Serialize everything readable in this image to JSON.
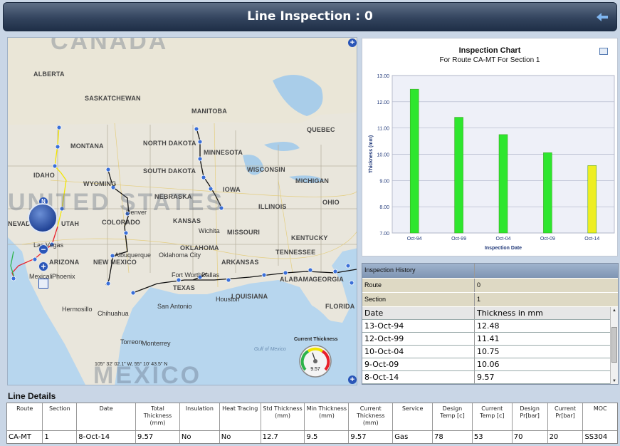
{
  "header": {
    "title": "Line Inspection : 0",
    "back_icon": "back-arrow-icon"
  },
  "map": {
    "country_labels": [
      "CANADA",
      "UNITED STATES",
      "MEXICO"
    ],
    "state_labels": [
      {
        "name": "ALBERTA"
      },
      {
        "name": "SASKATCHEWAN"
      },
      {
        "name": "MANITOBA"
      },
      {
        "name": "QUEBEC"
      },
      {
        "name": "MONTANA"
      },
      {
        "name": "NORTH DAKOTA"
      },
      {
        "name": "MINNESOTA"
      },
      {
        "name": "SOUTH DAKOTA"
      },
      {
        "name": "WISCONSIN"
      },
      {
        "name": "MICHIGAN"
      },
      {
        "name": "IDAHO"
      },
      {
        "name": "WYOMING"
      },
      {
        "name": "NEBRASKA"
      },
      {
        "name": "IOWA"
      },
      {
        "name": "ILLINOIS"
      },
      {
        "name": "OHIO"
      },
      {
        "name": "NEVADA"
      },
      {
        "name": "UTAH"
      },
      {
        "name": "COLORADO"
      },
      {
        "name": "KANSAS"
      },
      {
        "name": "MISSOURI"
      },
      {
        "name": "KENTUCKY"
      },
      {
        "name": "OKLAHOMA"
      },
      {
        "name": "TENNESSEE"
      },
      {
        "name": "ARIZONA"
      },
      {
        "name": "NEW MEXICO"
      },
      {
        "name": "ARKANSAS"
      },
      {
        "name": "TEXAS"
      },
      {
        "name": "LOUISIANA"
      },
      {
        "name": "ALABAMA"
      },
      {
        "name": "GEORGIA"
      },
      {
        "name": "FLORIDA"
      }
    ],
    "city_labels": [
      "Las Vegas",
      "Phoenix",
      "Denver",
      "Albuquerque",
      "Oklahoma City",
      "Dallas",
      "Fort Worth",
      "Houston",
      "San Antonio",
      "Chihuahua",
      "Monterrey",
      "Hermosillo",
      "Torreon",
      "Wichita",
      "Mexicali"
    ],
    "water_labels": [
      "Gulf of Mexico"
    ],
    "coordinates": "105° 32' 02.1\" W, 55° 10' 43.5\" N",
    "controls": {
      "north_label": "N",
      "zoom_in": "+",
      "zoom_out": "−",
      "expand": "+"
    },
    "gauge": {
      "title": "Current Thickness",
      "value": "9.57"
    },
    "colors": {
      "route_black": "#111111",
      "route_yellow": "#f2e600",
      "route_red": "#e8202a",
      "route_green": "#2db34a",
      "marker": "#3a6fd8"
    }
  },
  "chart_data": {
    "type": "bar",
    "title": "Inspection Chart",
    "subtitle": "For Route  CA-MT For Section 1",
    "xlabel": "Inspection Date",
    "ylabel": "Thickness (mm)",
    "categories": [
      "Oct-94",
      "Oct-99",
      "Oct-04",
      "Oct-09",
      "Oct-14"
    ],
    "values": [
      12.48,
      11.41,
      10.75,
      10.06,
      9.57
    ],
    "colors": [
      "#2ee62e",
      "#2ee62e",
      "#2ee62e",
      "#2ee62e",
      "#eeee22"
    ],
    "ylim": [
      7.0,
      13.0
    ],
    "yticks": [
      "7.00",
      "8.00",
      "9.00",
      "10.00",
      "11.00",
      "12.00",
      "13.00"
    ],
    "grid": true,
    "legend": "none"
  },
  "history": {
    "title": "Inspection History",
    "route_label": "Route",
    "route_value": "0",
    "section_label": "Section",
    "section_value": "1",
    "columns": [
      "Date",
      "Thickness in mm"
    ],
    "rows": [
      [
        "13-Oct-94",
        "12.48"
      ],
      [
        "12-Oct-99",
        "11.41"
      ],
      [
        "10-Oct-04",
        "10.75"
      ],
      [
        "9-Oct-09",
        "10.06"
      ],
      [
        "8-Oct-14",
        "9.57"
      ]
    ]
  },
  "details": {
    "title": "Line Details",
    "columns": [
      "Route",
      "Section",
      "Date",
      "Total Thickness (mm)",
      "Insulation",
      "Heat Tracing",
      "Std Thickness (mm)",
      "Min Thickness (mm)",
      "Current Thickness (mm)",
      "Service",
      "Design Temp [c]",
      "Current Temp [c]",
      "Design Pr[bar]",
      "Current Pr[bar]",
      "MOC"
    ],
    "row": [
      "CA-MT",
      "1",
      "8-Oct-14",
      "9.57",
      "No",
      "No",
      "12.7",
      "9.5",
      "9.57",
      "Gas",
      "78",
      "53",
      "70",
      "20",
      "SS304"
    ]
  }
}
